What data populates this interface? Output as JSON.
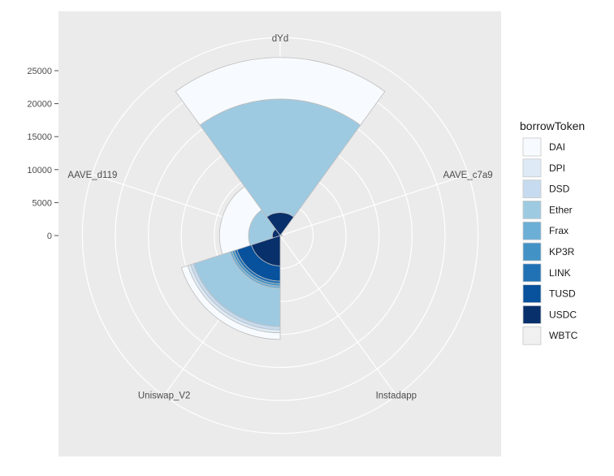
{
  "chart_data": {
    "type": "polar-stacked-bar",
    "categories": [
      "dYd",
      "AAVE_c7a9",
      "Instadapp",
      "Uniswap_V2",
      "AAVE_d119"
    ],
    "stack_order": [
      "USDC",
      "TUSD",
      "LINK",
      "KP3R",
      "Frax",
      "Ether",
      "DSD",
      "DPI",
      "DAI",
      "WBTC"
    ],
    "series": [
      {
        "name": "DAI",
        "color": "#f7fbff",
        "values": [
          6300,
          0,
          0,
          1000,
          4400
        ]
      },
      {
        "name": "DPI",
        "color": "#deebf7",
        "values": [
          0,
          0,
          0,
          450,
          0
        ]
      },
      {
        "name": "DSD",
        "color": "#c6dbef",
        "values": [
          0,
          0,
          0,
          500,
          0
        ]
      },
      {
        "name": "Ether",
        "color": "#9ecae1",
        "values": [
          17200,
          300,
          0,
          5800,
          3600
        ]
      },
      {
        "name": "Frax",
        "color": "#6baed6",
        "values": [
          0,
          0,
          0,
          350,
          0
        ]
      },
      {
        "name": "KP3R",
        "color": "#4292c6",
        "values": [
          0,
          0,
          0,
          350,
          0
        ]
      },
      {
        "name": "LINK",
        "color": "#2171b5",
        "values": [
          0,
          0,
          0,
          400,
          0
        ]
      },
      {
        "name": "TUSD",
        "color": "#08519c",
        "values": [
          0,
          0,
          0,
          2300,
          0
        ]
      },
      {
        "name": "USDC",
        "color": "#08306b",
        "values": [
          3500,
          0,
          0,
          4600,
          1200
        ]
      },
      {
        "name": "WBTC",
        "color": "#f0f0f0",
        "values": [
          0,
          0,
          0,
          0,
          0
        ]
      }
    ],
    "y_ticks": [
      0,
      5000,
      10000,
      15000,
      20000,
      25000
    ],
    "y_tick_labels": [
      "0",
      "5000",
      "10000",
      "15000",
      "20000",
      "25000"
    ],
    "ylim": [
      0,
      30000
    ],
    "legend": {
      "title": "borrowToken",
      "placement": "right",
      "entries": [
        "DAI",
        "DPI",
        "DSD",
        "Ether",
        "Frax",
        "KP3R",
        "LINK",
        "TUSD",
        "USDC",
        "WBTC"
      ]
    },
    "grid": true,
    "panel_background": "#ebebeb"
  }
}
